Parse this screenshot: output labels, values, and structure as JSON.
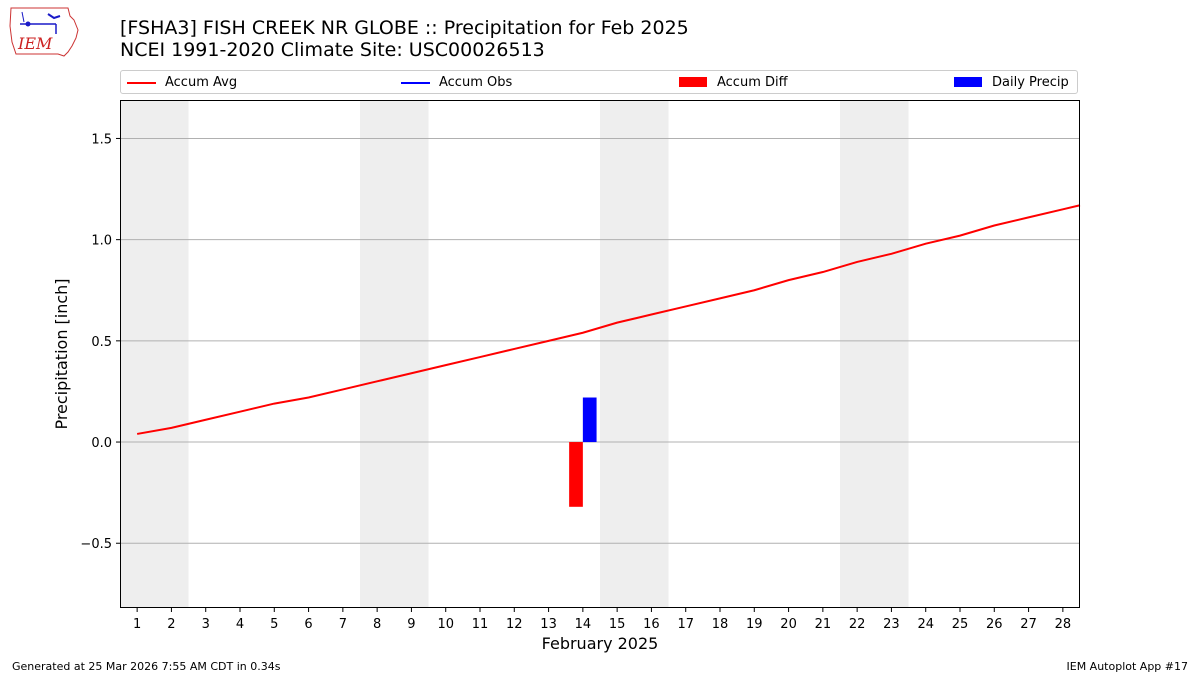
{
  "header": {
    "title_line1": "[FSHA3] FISH CREEK NR GLOBE :: Precipitation for Feb 2025",
    "title_line2": "NCEI 1991-2020 Climate Site: USC00026513",
    "logo_text": "IEM"
  },
  "legend": {
    "items": [
      {
        "label": "Accum Avg",
        "kind": "line",
        "color": "#ff0000"
      },
      {
        "label": "Accum Obs",
        "kind": "line",
        "color": "#0000ff"
      },
      {
        "label": "Accum Diff",
        "kind": "box",
        "color": "#ff0000"
      },
      {
        "label": "Daily Precip",
        "kind": "box",
        "color": "#0000ff"
      }
    ]
  },
  "footer": {
    "generated": "Generated at 25 Mar 2026 7:55 AM CDT in 0.34s",
    "app": "IEM Autoplot App #17"
  },
  "chart_data": {
    "type": "line",
    "title": "[FSHA3] FISH CREEK NR GLOBE :: Precipitation for Feb 2025",
    "subtitle": "NCEI 1991-2020 Climate Site: USC00026513",
    "xlabel": "February 2025",
    "ylabel": "Precipitation [inch]",
    "x": [
      1,
      2,
      3,
      4,
      5,
      6,
      7,
      8,
      9,
      10,
      11,
      12,
      13,
      14,
      15,
      16,
      17,
      18,
      19,
      20,
      21,
      22,
      23,
      24,
      25,
      26,
      27,
      28
    ],
    "xlim": [
      0.5,
      28.5
    ],
    "ylim": [
      -0.82,
      1.69
    ],
    "yticks": [
      -0.5,
      0.0,
      0.5,
      1.0,
      1.5
    ],
    "ytick_labels": [
      "−0.5",
      "0.0",
      "0.5",
      "1.0",
      "1.5"
    ],
    "grid": "horizontal",
    "weekend_shading": [
      [
        0.5,
        2.5
      ],
      [
        7.5,
        9.5
      ],
      [
        14.5,
        16.5
      ],
      [
        21.5,
        23.5
      ]
    ],
    "legend_position": "top, above plot",
    "series": [
      {
        "name": "Accum Avg",
        "type": "line",
        "color": "#ff0000",
        "values": [
          0.04,
          0.07,
          0.11,
          0.15,
          0.19,
          0.22,
          0.26,
          0.3,
          0.34,
          0.38,
          0.42,
          0.46,
          0.5,
          0.54,
          0.59,
          0.63,
          0.67,
          0.71,
          0.75,
          0.8,
          0.84,
          0.89,
          0.93,
          0.98,
          1.02,
          1.07,
          1.11,
          1.15
        ]
      },
      {
        "name": "Accum Diff",
        "type": "bar",
        "color": "#ff0000",
        "points": [
          {
            "x": 14,
            "value": -0.32
          }
        ]
      },
      {
        "name": "Daily Precip",
        "type": "bar",
        "color": "#0000ff",
        "points": [
          {
            "x": 14,
            "value": 0.22
          }
        ]
      }
    ]
  }
}
